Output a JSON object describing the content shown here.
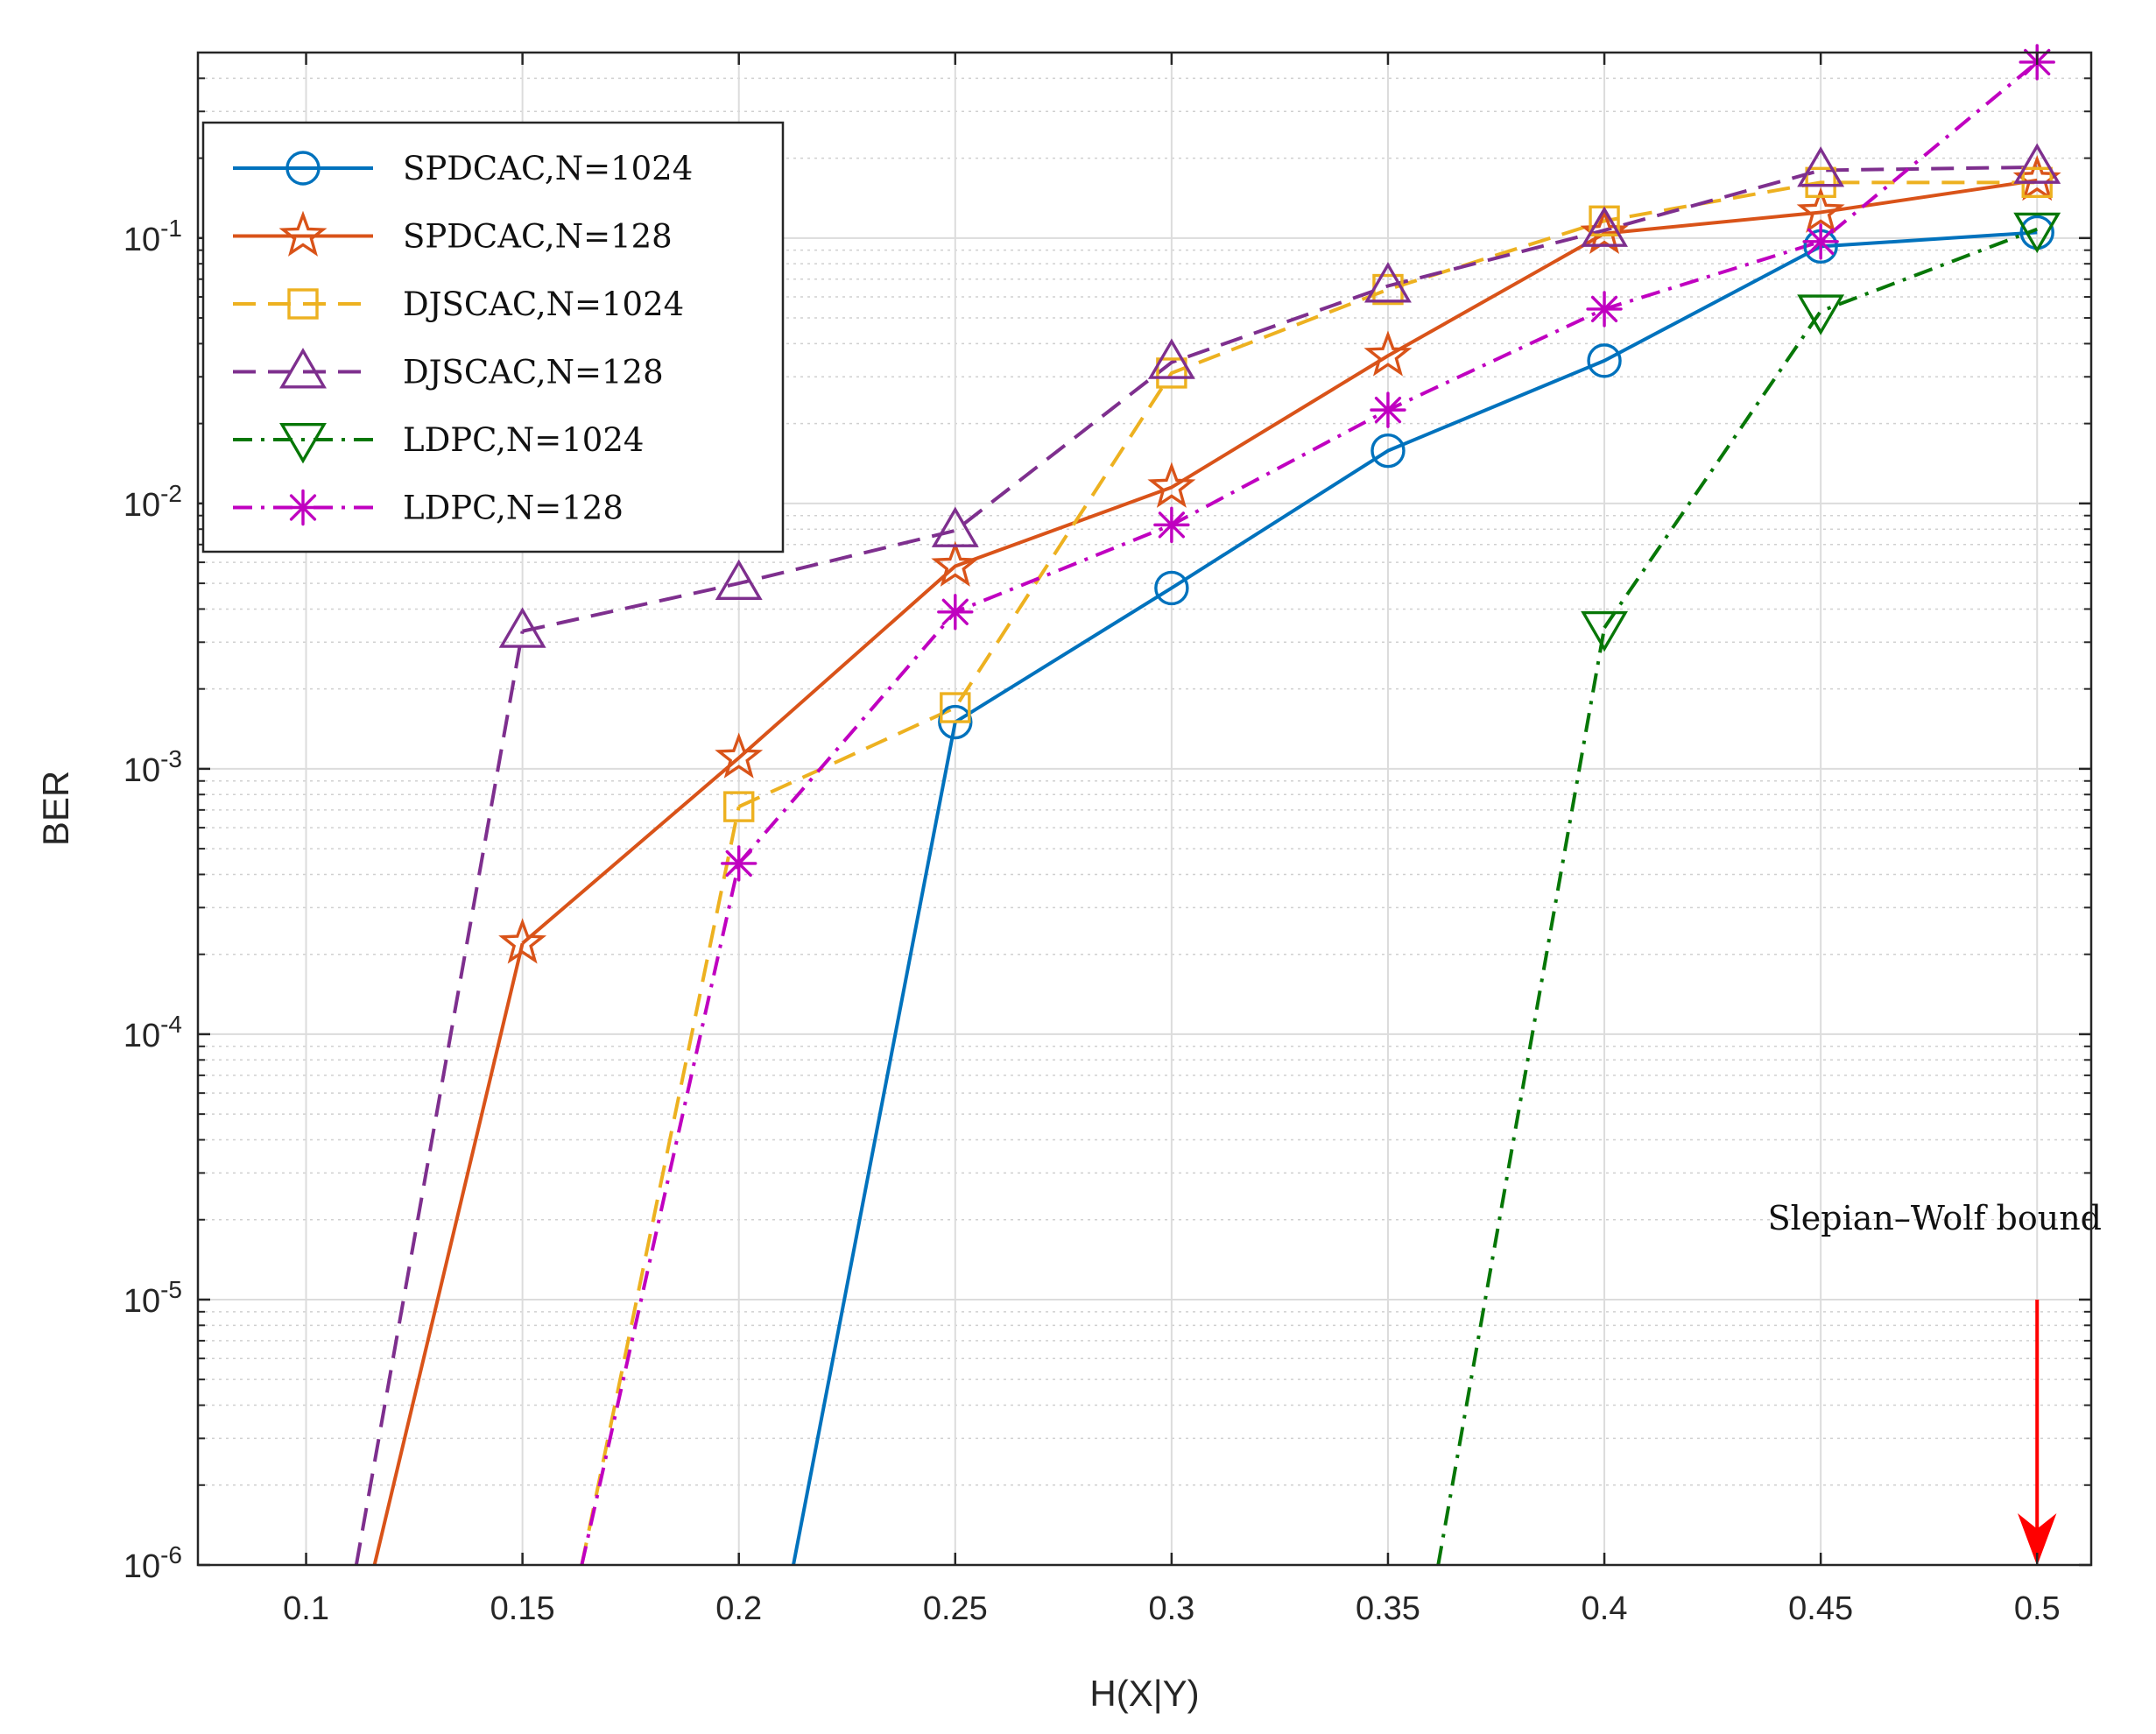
{
  "chart_data": {
    "type": "line",
    "title": "",
    "xlabel": "H(X|Y)",
    "ylabel": "BER",
    "yscale": "log",
    "xlim": [
      0.075,
      0.5125
    ],
    "ylim": [
      1e-06,
      0.5
    ],
    "grid": true,
    "minor_grid": true,
    "legend_position": "top-left",
    "x_ticks": [
      0.1,
      0.15,
      0.2,
      0.25,
      0.3,
      0.35,
      0.4,
      0.45,
      0.5
    ],
    "x_tick_labels": [
      "0.1",
      "0.15",
      "0.2",
      "0.25",
      "0.3",
      "0.35",
      "0.4",
      "0.45",
      "0.5"
    ],
    "y_ticks": [
      {
        "value": 0.1,
        "base": "10",
        "exp": "-1"
      },
      {
        "value": 0.01,
        "base": "10",
        "exp": "-2"
      },
      {
        "value": 0.001,
        "base": "10",
        "exp": "-3"
      },
      {
        "value": 0.0001,
        "base": "10",
        "exp": "-4"
      },
      {
        "value": 1e-05,
        "base": "10",
        "exp": "-5"
      },
      {
        "value": 1e-06,
        "base": "10",
        "exp": "-6"
      }
    ],
    "series": [
      {
        "name": "SPDCAC,N=1024",
        "color": "#0072BD",
        "line_style": "solid",
        "marker": "circle",
        "x": [
          0.25,
          0.3,
          0.35,
          0.4,
          0.45,
          0.5
        ],
        "values": [
          0.0015,
          0.0048,
          0.0158,
          0.0345,
          0.093,
          0.105
        ],
        "tail": [
          0.2126,
          1e-06
        ]
      },
      {
        "name": "SPDCAC,N=128",
        "color": "#D95319",
        "line_style": "solid",
        "marker": "star",
        "x": [
          0.15,
          0.2,
          0.25,
          0.3,
          0.35,
          0.4,
          0.45,
          0.5
        ],
        "values": [
          0.00022,
          0.0011,
          0.0058,
          0.0115,
          0.036,
          0.104,
          0.125,
          0.165
        ],
        "tail": [
          0.1158,
          1e-06
        ]
      },
      {
        "name": "DJSCAC,N=1024",
        "color": "#EDB120",
        "line_style": "dashed",
        "marker": "square",
        "x": [
          0.2,
          0.25,
          0.3,
          0.35,
          0.4,
          0.45,
          0.5
        ],
        "values": [
          0.00072,
          0.0017,
          0.031,
          0.064,
          0.116,
          0.162,
          0.162
        ],
        "tail": [
          0.1637,
          1e-06
        ]
      },
      {
        "name": "DJSCAC,N=128",
        "color": "#7E2F8E",
        "line_style": "dashed",
        "marker": "triangle-up",
        "x": [
          0.15,
          0.2,
          0.25,
          0.3,
          0.35,
          0.4,
          0.45,
          0.5
        ],
        "values": [
          0.0033,
          0.005,
          0.0079,
          0.034,
          0.066,
          0.107,
          0.18,
          0.185
        ],
        "tail": [
          0.1116,
          1e-06
        ]
      },
      {
        "name": "LDPC,N=1024",
        "color": "#077707",
        "line_style": "dashdot",
        "marker": "triangle-down",
        "x": [
          0.4,
          0.45,
          0.5
        ],
        "values": [
          0.0034,
          0.053,
          0.108
        ],
        "tail": [
          0.3616,
          1e-06
        ]
      },
      {
        "name": "LDPC,N=128",
        "color": "#C000C0",
        "line_style": "dashdot",
        "marker": "asterisk",
        "x": [
          0.2,
          0.25,
          0.3,
          0.35,
          0.4,
          0.45,
          0.5
        ],
        "values": [
          0.00044,
          0.0039,
          0.0083,
          0.0225,
          0.054,
          0.097,
          0.46
        ],
        "tail": [
          0.1637,
          1e-06
        ]
      }
    ],
    "annotations": [
      {
        "text": "Slepian–Wolf bound",
        "arrow_color": "#FF0000",
        "arrow_x": 0.5,
        "arrow_from": 1e-05,
        "arrow_to": 1e-06
      }
    ]
  }
}
